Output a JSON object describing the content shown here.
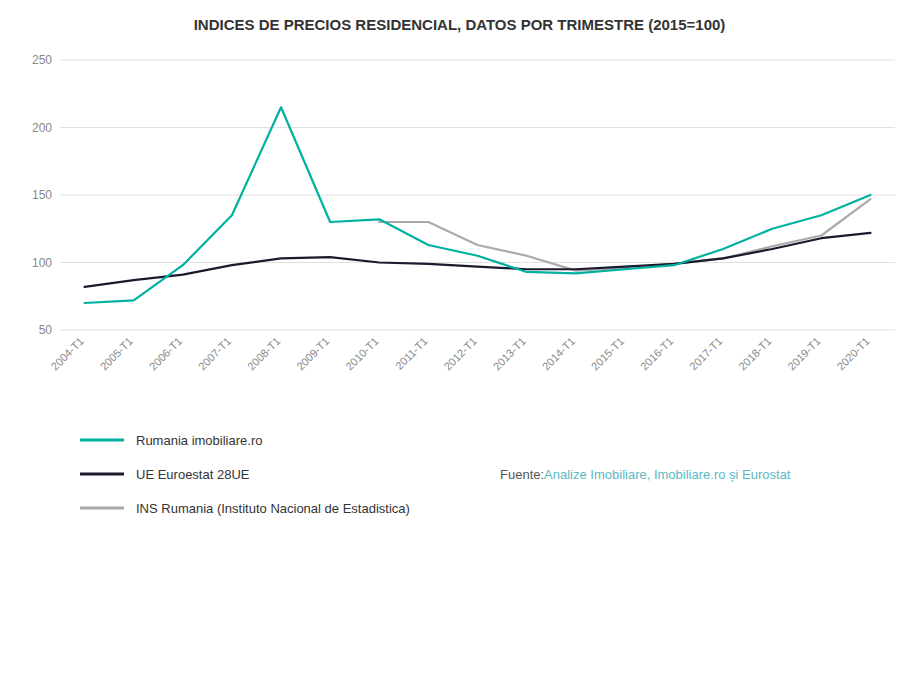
{
  "chart_data": {
    "type": "line",
    "title": "INDICES DE PRECIOS RESIDENCIAL, DATOS POR TRIMESTRE      (2015=100)",
    "categories": [
      "2004-T1",
      "2005-T1",
      "2006-T1",
      "2007-T1",
      "2008-T1",
      "2009-T1",
      "2010-T1",
      "2011-T1",
      "2012-T1",
      "2013-T1",
      "2014-T1",
      "2015-T1",
      "2016-T1",
      "2017-T1",
      "2018-T1",
      "2019-T1",
      "2020-T1"
    ],
    "series": [
      {
        "name": "Rumania imobiliare.ro",
        "color": "#00b0a0",
        "values": [
          70,
          72,
          98,
          135,
          215,
          130,
          132,
          113,
          105,
          93,
          92,
          95,
          98,
          110,
          125,
          135,
          150
        ]
      },
      {
        "name": "UE Euroestat 28UE",
        "color": "#1a1a2e",
        "values": [
          82,
          87,
          91,
          98,
          103,
          104,
          100,
          99,
          97,
          95,
          95,
          97,
          99,
          103,
          110,
          118,
          122
        ]
      },
      {
        "name": "INS Rumania (Instituto Nacional de Estadistica)",
        "color": "#aaaaaa",
        "values": [
          null,
          null,
          null,
          null,
          null,
          null,
          130,
          130,
          113,
          105,
          94,
          96,
          99,
          103,
          112,
          120,
          147
        ]
      }
    ],
    "ylim": [
      50,
      250
    ],
    "yticks": [
      50,
      100,
      150,
      200,
      250
    ],
    "grid": true,
    "legend": "bottom",
    "annotations": [
      {
        "text": "Fuente: ",
        "color": "#555555"
      },
      {
        "text": "Analize Imobiliare, Imobiliare.ro și Eurostat",
        "color": "#5cb8c4"
      }
    ]
  }
}
